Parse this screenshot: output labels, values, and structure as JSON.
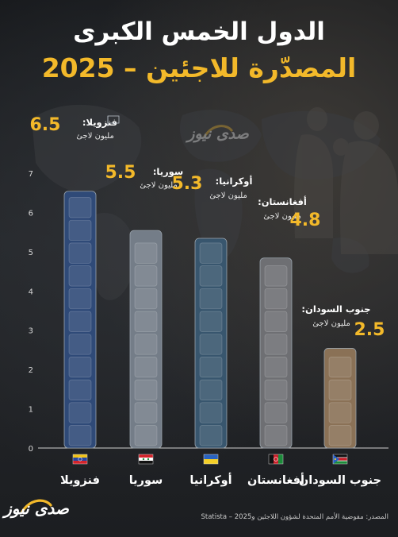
{
  "title": "الدول الخمس الكبرى",
  "subtitle": "المصدّرة للاجئين – 2025",
  "logo_text": "صدى نيوز",
  "source": "المصدر: مفوضية الأمم المتحدة لشؤون اللاجئين وStatista – 2025",
  "unit_label": "مليون لاجئ",
  "colors": {
    "accent": "#f3b92a",
    "venezuela": "#2f4a78",
    "syria": "#747d88",
    "ukraine": "#38566e",
    "afghanistan": "#6e6f73",
    "south_sudan": "#8a7156"
  },
  "chart_data": {
    "type": "bar",
    "categories": [
      "فنزويلا",
      "سوريا",
      "أوكرانيا",
      "أفغانستان",
      "جنوب السودان"
    ],
    "values": [
      6.5,
      5.5,
      5.3,
      4.8,
      2.5
    ],
    "value_labels": [
      "6.5",
      "5.5",
      "5.3",
      "4.8",
      "2.5"
    ],
    "annotation_labels": [
      "فنزويلا:",
      "سوريا:",
      "أوكرانيا:",
      "أفغانستان:",
      "جنوب السودان:"
    ],
    "ylim": [
      0,
      7.5
    ],
    "yticks": [
      "0",
      "1",
      "2",
      "3",
      "4",
      "5",
      "6",
      "7"
    ],
    "grid": false,
    "flags": [
      "flag-venezuela",
      "flag-syria",
      "flag-ukraine",
      "flag-afghanistan",
      "flag-south-sudan"
    ]
  }
}
